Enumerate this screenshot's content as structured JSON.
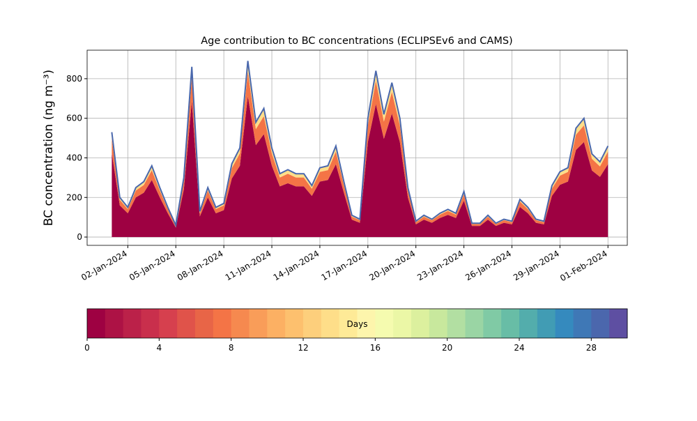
{
  "chart_data": {
    "type": "stacked_area",
    "title": "Age contribution to BC concentrations (ECLIPSEv6 and CAMS)",
    "y_label": "BC concentration (ng m⁻³)",
    "x": [
      "2024-01-01T00:00",
      "2024-01-01T12:00",
      "2024-01-02T00:00",
      "2024-01-02T12:00",
      "2024-01-03T00:00",
      "2024-01-03T12:00",
      "2024-01-04T00:00",
      "2024-01-04T12:00",
      "2024-01-05T00:00",
      "2024-01-05T12:00",
      "2024-01-06T00:00",
      "2024-01-06T12:00",
      "2024-01-07T00:00",
      "2024-01-07T12:00",
      "2024-01-08T00:00",
      "2024-01-08T12:00",
      "2024-01-09T00:00",
      "2024-01-09T12:00",
      "2024-01-10T00:00",
      "2024-01-10T12:00",
      "2024-01-11T00:00",
      "2024-01-11T12:00",
      "2024-01-12T00:00",
      "2024-01-12T12:00",
      "2024-01-13T00:00",
      "2024-01-13T12:00",
      "2024-01-14T00:00",
      "2024-01-14T12:00",
      "2024-01-15T00:00",
      "2024-01-15T12:00",
      "2024-01-16T00:00",
      "2024-01-16T12:00",
      "2024-01-17T00:00",
      "2024-01-17T12:00",
      "2024-01-18T00:00",
      "2024-01-18T12:00",
      "2024-01-19T00:00",
      "2024-01-19T12:00",
      "2024-01-20T00:00",
      "2024-01-20T12:00",
      "2024-01-21T00:00",
      "2024-01-21T12:00",
      "2024-01-22T00:00",
      "2024-01-22T12:00",
      "2024-01-23T00:00",
      "2024-01-23T12:00",
      "2024-01-24T00:00",
      "2024-01-24T12:00",
      "2024-01-25T00:00",
      "2024-01-25T12:00",
      "2024-01-26T00:00",
      "2024-01-26T12:00",
      "2024-01-27T00:00",
      "2024-01-27T12:00",
      "2024-01-28T00:00",
      "2024-01-28T12:00",
      "2024-01-29T00:00",
      "2024-01-29T12:00",
      "2024-01-30T00:00",
      "2024-01-30T12:00",
      "2024-01-31T00:00",
      "2024-01-31T12:00",
      "2024-02-01T00:00"
    ],
    "series": [
      {
        "color": "#9e0142",
        "values": [
          424,
          160,
          120,
          200,
          224,
          288,
          200,
          120,
          48,
          240,
          688,
          104,
          200,
          120,
          136,
          296,
          360,
          712,
          464,
          520,
          360,
          256,
          272,
          256,
          256,
          208,
          280,
          288,
          368,
          224,
          88,
          72,
          480,
          672,
          496,
          624,
          480,
          200,
          64,
          88,
          72,
          96,
          112,
          96,
          184,
          56,
          56,
          88,
          56,
          72,
          64,
          152,
          120,
          72,
          64,
          208,
          264,
          280,
          440,
          480,
          336,
          304,
          368
        ]
      },
      {
        "color": "#f47446",
        "values": [
          74,
          28,
          21,
          35,
          39,
          50,
          35,
          21,
          8,
          42,
          120,
          18,
          35,
          21,
          24,
          52,
          63,
          125,
          81,
          91,
          63,
          45,
          48,
          45,
          45,
          36,
          49,
          50,
          64,
          39,
          15,
          13,
          84,
          118,
          87,
          109,
          84,
          35,
          11,
          15,
          13,
          17,
          20,
          17,
          32,
          10,
          10,
          15,
          10,
          13,
          11,
          27,
          21,
          13,
          11,
          36,
          46,
          49,
          77,
          84,
          59,
          53,
          64
        ]
      },
      {
        "color": "#fede89",
        "values": [
          32,
          12,
          9,
          15,
          17,
          22,
          15,
          9,
          4,
          18,
          52,
          8,
          15,
          9,
          10,
          22,
          27,
          53,
          35,
          39,
          27,
          19,
          20,
          19,
          19,
          16,
          21,
          22,
          28,
          17,
          7,
          5,
          36,
          50,
          37,
          47,
          36,
          15,
          5,
          7,
          5,
          7,
          8,
          7,
          14,
          4,
          4,
          7,
          4,
          5,
          5,
          11,
          9,
          5,
          5,
          16,
          20,
          21,
          33,
          36,
          25,
          23,
          28
        ]
      }
    ],
    "line_color": "#4a68ad",
    "xlim": [
      "2023-12-30T11:00",
      "2024-02-02T05:00"
    ],
    "xticks": [
      {
        "value": "2024-01-02",
        "label": "02-Jan-2024"
      },
      {
        "value": "2024-01-05",
        "label": "05-Jan-2024"
      },
      {
        "value": "2024-01-08",
        "label": "08-Jan-2024"
      },
      {
        "value": "2024-01-11",
        "label": "11-Jan-2024"
      },
      {
        "value": "2024-01-14",
        "label": "14-Jan-2024"
      },
      {
        "value": "2024-01-17",
        "label": "17-Jan-2024"
      },
      {
        "value": "2024-01-20",
        "label": "20-Jan-2024"
      },
      {
        "value": "2024-01-23",
        "label": "23-Jan-2024"
      },
      {
        "value": "2024-01-26",
        "label": "26-Jan-2024"
      },
      {
        "value": "2024-01-29",
        "label": "29-Jan-2024"
      },
      {
        "value": "2024-02-01",
        "label": "01-Feb-2024"
      }
    ],
    "ylim": [
      -42,
      944
    ],
    "yticks": [
      0,
      200,
      400,
      600,
      800
    ],
    "grid": true,
    "colorbar": {
      "label": "Days",
      "lim": [
        0,
        30
      ],
      "ticks": [
        0,
        4,
        8,
        12,
        16,
        20,
        24,
        28
      ],
      "colors": [
        "#9e0142",
        "#ad1245",
        "#bb2149",
        "#c92f4c",
        "#d6404e",
        "#e0534a",
        "#e86547",
        "#f47446",
        "#f6894f",
        "#f99d59",
        "#fcb063",
        "#fdc06e",
        "#fdcf7c",
        "#fede89",
        "#feea97",
        "#fdf5ac",
        "#f5fbaf",
        "#ebf7a6",
        "#dcf09e",
        "#c8e89d",
        "#b2dfa2",
        "#9ad5a4",
        "#80caa5",
        "#68bda6",
        "#53adac",
        "#419cb4",
        "#358abe",
        "#3f78b6",
        "#4b67ad",
        "#5e4fa2"
      ]
    }
  }
}
